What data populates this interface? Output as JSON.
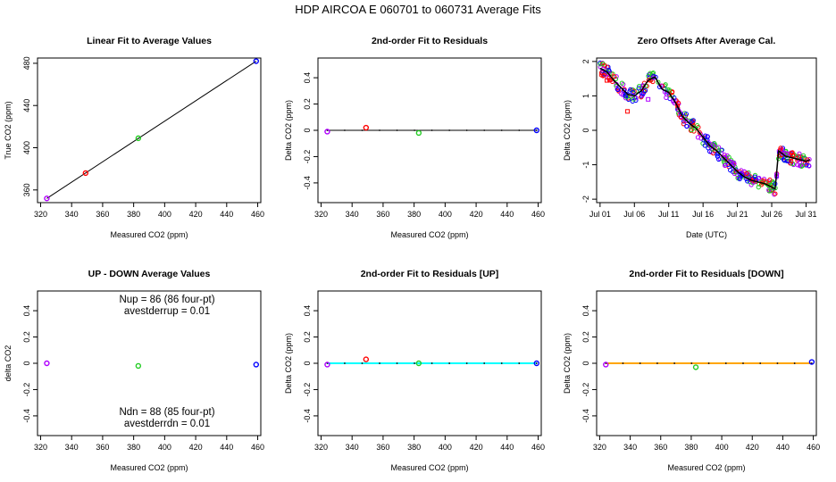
{
  "figure_title": "HDP    AIRCOA E    060701 to 060731    Average Fits",
  "colors": {
    "red": "#ff0000",
    "green": "#22cc22",
    "blue": "#0000ff",
    "purple": "#b000ff",
    "cyan": "#00ffff",
    "orange": "#ffa500",
    "black": "#000000"
  },
  "chart_data": [
    {
      "id": "linear",
      "type": "scatter",
      "title": "Linear Fit to Average Values",
      "xlabel": "Measured CO2 (ppm)",
      "ylabel": "True CO2 (ppm)",
      "xlim": [
        318,
        462
      ],
      "ylim": [
        348,
        485
      ],
      "xticks": [
        320,
        340,
        360,
        380,
        400,
        420,
        440,
        460
      ],
      "yticks": [
        360,
        400,
        440,
        480
      ],
      "points": [
        {
          "x": 324,
          "y": 352,
          "color": "purple"
        },
        {
          "x": 349,
          "y": 376,
          "color": "red"
        },
        {
          "x": 383,
          "y": 409,
          "color": "green"
        },
        {
          "x": 459,
          "y": 482,
          "color": "blue"
        }
      ],
      "line": {
        "x": [
          324,
          459
        ],
        "y": [
          352,
          482
        ],
        "color": "black"
      }
    },
    {
      "id": "resid",
      "type": "scatter",
      "title": "2nd-order Fit to Residuals",
      "xlabel": "Measured CO2 (ppm)",
      "ylabel": "Delta CO2 (ppm)",
      "xlim": [
        318,
        462
      ],
      "ylim": [
        -0.55,
        0.55
      ],
      "xticks": [
        320,
        340,
        360,
        380,
        400,
        420,
        440,
        460
      ],
      "yticks": [
        -0.4,
        -0.2,
        0.0,
        0.2,
        0.4
      ],
      "points": [
        {
          "x": 324,
          "y": -0.01,
          "color": "purple"
        },
        {
          "x": 349,
          "y": 0.02,
          "color": "red"
        },
        {
          "x": 383,
          "y": -0.02,
          "color": "green"
        },
        {
          "x": 459,
          "y": 0.0,
          "color": "blue"
        }
      ],
      "line": {
        "x": [
          324,
          459
        ],
        "y": [
          0.0,
          0.0
        ],
        "color": "black"
      }
    },
    {
      "id": "zero",
      "type": "scatter",
      "title": "Zero Offsets After Average Cal.",
      "xlabel": "Date (UTC)",
      "ylabel": "Delta CO2 (ppm)",
      "xlim": [
        0.5,
        32.5
      ],
      "ylim": [
        -2.1,
        2.1
      ],
      "xticks": [
        1,
        6,
        11,
        16,
        21,
        26,
        31
      ],
      "xticklabels": [
        "Jul 01",
        "Jul 06",
        "Jul 11",
        "Jul 16",
        "Jul 21",
        "Jul 26",
        "Jul 31"
      ],
      "yticks": [
        -2,
        -1,
        0,
        1,
        2
      ],
      "trend": {
        "x": [
          1,
          2,
          3,
          4,
          5,
          6,
          7,
          8,
          9,
          10,
          11,
          12,
          13,
          14,
          15,
          16,
          17,
          18,
          19,
          20,
          21,
          22,
          23,
          24,
          25,
          26,
          26.5,
          27,
          28,
          29,
          30,
          31,
          31.6
        ],
        "y": [
          1.8,
          1.7,
          1.45,
          1.25,
          1.05,
          1.0,
          1.15,
          1.45,
          1.55,
          1.2,
          1.1,
          0.8,
          0.4,
          0.2,
          0.05,
          -0.2,
          -0.45,
          -0.6,
          -0.8,
          -1.0,
          -1.2,
          -1.35,
          -1.45,
          -1.5,
          -1.55,
          -1.65,
          -1.7,
          -0.6,
          -0.75,
          -0.8,
          -0.85,
          -0.9,
          -0.85
        ],
        "color": "black"
      },
      "series_colors": [
        "purple",
        "blue",
        "red",
        "green"
      ]
    },
    {
      "id": "updown",
      "type": "scatter",
      "title": "UP - DOWN Average Values",
      "xlabel": "Measured CO2 (ppm)",
      "ylabel": "delta CO2",
      "xlim": [
        318,
        462
      ],
      "ylim": [
        -0.55,
        0.55
      ],
      "xticks": [
        320,
        340,
        360,
        380,
        400,
        420,
        440,
        460
      ],
      "yticks": [
        -0.4,
        -0.2,
        0.0,
        0.2,
        0.4
      ],
      "points": [
        {
          "x": 324,
          "y": 0.0,
          "color": "purple"
        },
        {
          "x": 383,
          "y": -0.02,
          "color": "green"
        },
        {
          "x": 459,
          "y": -0.01,
          "color": "blue"
        }
      ],
      "annotations": {
        "nup": "Nup = 86 (86 four-pt)",
        "avup": "avestderrup =  0.01",
        "ndn": "Ndn = 88 (85 four-pt)",
        "avdn": "avestderrdn =  0.01"
      }
    },
    {
      "id": "residup",
      "type": "scatter",
      "title": "2nd-order Fit to Residuals [UP]",
      "xlabel": "Measured CO2 (ppm)",
      "ylabel": "Delta CO2 (ppm)",
      "xlim": [
        318,
        462
      ],
      "ylim": [
        -0.55,
        0.55
      ],
      "xticks": [
        320,
        340,
        360,
        380,
        400,
        420,
        440,
        460
      ],
      "yticks": [
        -0.4,
        -0.2,
        0.0,
        0.2,
        0.4
      ],
      "points": [
        {
          "x": 324,
          "y": -0.01,
          "color": "purple"
        },
        {
          "x": 349,
          "y": 0.03,
          "color": "red"
        },
        {
          "x": 383,
          "y": 0.0,
          "color": "green"
        },
        {
          "x": 459,
          "y": 0.0,
          "color": "blue"
        }
      ],
      "line": {
        "x": [
          324,
          459
        ],
        "y": [
          0.0,
          0.0
        ],
        "color": "cyan"
      }
    },
    {
      "id": "residdown",
      "type": "scatter",
      "title": "2nd-order Fit to Residuals [DOWN]",
      "xlabel": "Measured CO2 (ppm)",
      "ylabel": "Delta CO2 (ppm)",
      "xlim": [
        318,
        462
      ],
      "ylim": [
        -0.55,
        0.55
      ],
      "xticks": [
        320,
        340,
        360,
        380,
        400,
        420,
        440,
        460
      ],
      "yticks": [
        -0.4,
        -0.2,
        0.0,
        0.2,
        0.4
      ],
      "points": [
        {
          "x": 324,
          "y": -0.01,
          "color": "purple"
        },
        {
          "x": 383,
          "y": -0.03,
          "color": "green"
        },
        {
          "x": 459,
          "y": 0.01,
          "color": "blue"
        }
      ],
      "line": {
        "x": [
          324,
          459
        ],
        "y": [
          0.0,
          0.0
        ],
        "color": "orange"
      }
    }
  ]
}
